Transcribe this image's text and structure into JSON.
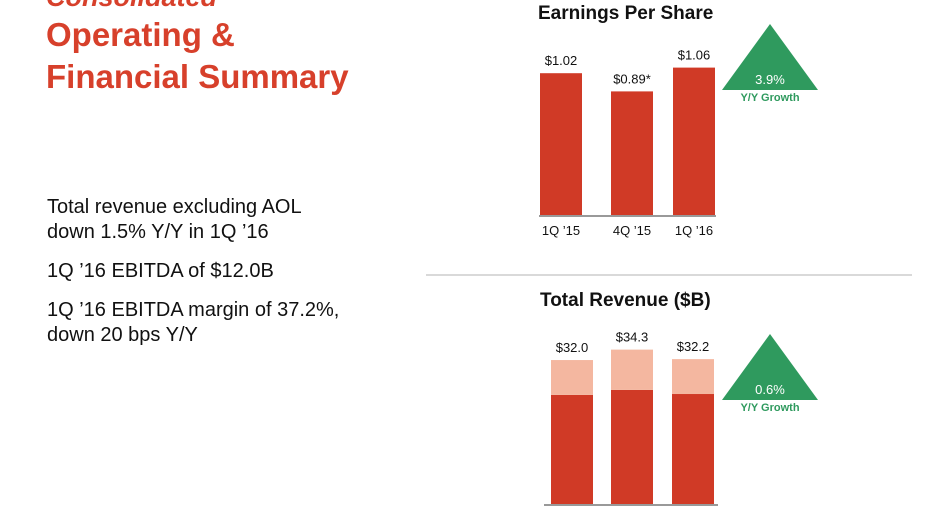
{
  "slide": {
    "title_top": "Consolidated",
    "title_line1": "Operating &",
    "title_line2": "Financial Summary",
    "bullets": [
      "Total revenue excluding AOL\ndown 1.5% Y/Y in 1Q ’16",
      "1Q ’16 EBITDA of $12.0B",
      "1Q ’16 EBITDA margin of 37.2%,\ndown 20 bps Y/Y"
    ]
  },
  "colors": {
    "title": "#d7402b",
    "bar": "#d03a26",
    "bar_light": "#f4b7a0",
    "growth": "#2f9a5e",
    "axis": "#999999"
  },
  "chart_data": [
    {
      "type": "bar",
      "title": "Earnings Per Share",
      "categories": [
        "1Q ’15",
        "4Q ’15",
        "1Q ’16"
      ],
      "values": [
        1.02,
        0.89,
        1.06
      ],
      "data_labels": [
        "$1.02",
        "$0.89*",
        "$1.06"
      ],
      "ylim": [
        0,
        1.25
      ],
      "growth": {
        "value": "3.9%",
        "label": "Y/Y Growth"
      }
    },
    {
      "type": "bar",
      "title": "Total Revenue ($B)",
      "stacked": true,
      "total_labels": [
        "$32.0",
        "$34.3",
        "$32.2"
      ],
      "totals": [
        32.0,
        34.3,
        32.2
      ],
      "series": [
        {
          "values": [
            24.3,
            25.4,
            24.5
          ]
        },
        {
          "values": [
            7.7,
            8.9,
            7.7
          ]
        }
      ],
      "growth": {
        "value": "0.6%",
        "label": "Y/Y Growth"
      }
    }
  ]
}
